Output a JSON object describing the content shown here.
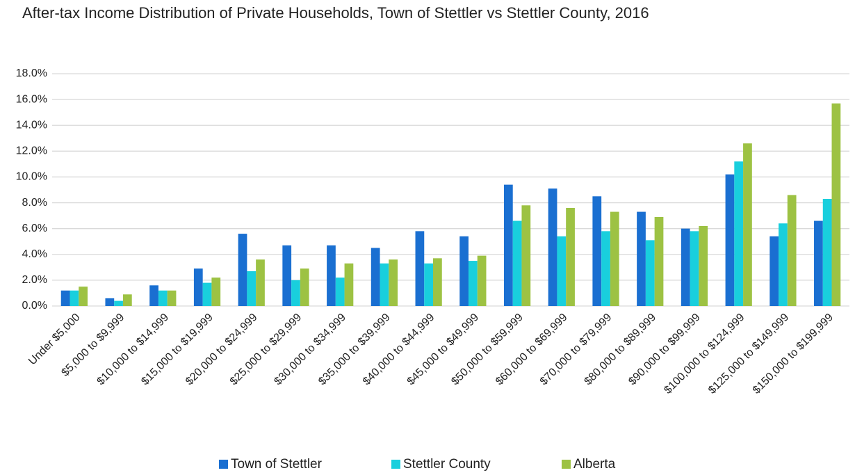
{
  "chart_data": {
    "type": "bar",
    "title": "After-tax Income Distribution of Private Households, Town of Stettler vs Stettler County, 2016",
    "categories": [
      "Under $5,000",
      "$5,000 to $9,999",
      "$10,000 to $14,999",
      "$15,000 to $19,999",
      "$20,000 to $24,999",
      "$25,000 to $29,999",
      "$30,000 to $34,999",
      "$35,000 to $39,999",
      "$40,000 to $44,999",
      "$45,000 to $49,999",
      "$50,000 to $59,999",
      "$60,000 to $69,999",
      "$70,000 to $79,999",
      "$80,000 to $89,999",
      "$90,000 to $99,999",
      "$100,000 to $124,999",
      "$125,000 to $149,999",
      "$150,000 to $199,999"
    ],
    "series": [
      {
        "name": "Town of Stettler",
        "color": "#1a6fd1",
        "values": [
          1.2,
          0.6,
          1.6,
          2.9,
          5.6,
          4.7,
          4.7,
          4.5,
          5.8,
          5.4,
          9.4,
          9.1,
          8.5,
          7.3,
          6.0,
          10.2,
          5.4,
          6.6
        ]
      },
      {
        "name": "Stettler County",
        "color": "#19cfdd",
        "values": [
          1.2,
          0.4,
          1.2,
          1.8,
          2.7,
          2.0,
          2.2,
          3.3,
          3.3,
          3.5,
          6.6,
          5.4,
          5.8,
          5.1,
          5.8,
          11.2,
          6.4,
          8.3
        ]
      },
      {
        "name": "Alberta",
        "color": "#9dc243",
        "values": [
          1.5,
          0.9,
          1.2,
          2.2,
          3.6,
          2.9,
          3.3,
          3.6,
          3.7,
          3.9,
          7.8,
          7.6,
          7.3,
          6.9,
          6.2,
          12.6,
          8.6,
          15.7
        ]
      }
    ],
    "ylim": [
      0,
      18
    ],
    "yticks": [
      {
        "value": 0,
        "label": "0.0%"
      },
      {
        "value": 2,
        "label": "2.0%"
      },
      {
        "value": 4,
        "label": "4.0%"
      },
      {
        "value": 6,
        "label": "6.0%"
      },
      {
        "value": 8,
        "label": "8.0%"
      },
      {
        "value": 10,
        "label": "10.0%"
      },
      {
        "value": 12,
        "label": "12.0%"
      },
      {
        "value": 14,
        "label": "14.0%"
      },
      {
        "value": 16,
        "label": "16.0%"
      },
      {
        "value": 18,
        "label": "18.0%"
      }
    ],
    "grid": true,
    "legend": "bottom"
  }
}
